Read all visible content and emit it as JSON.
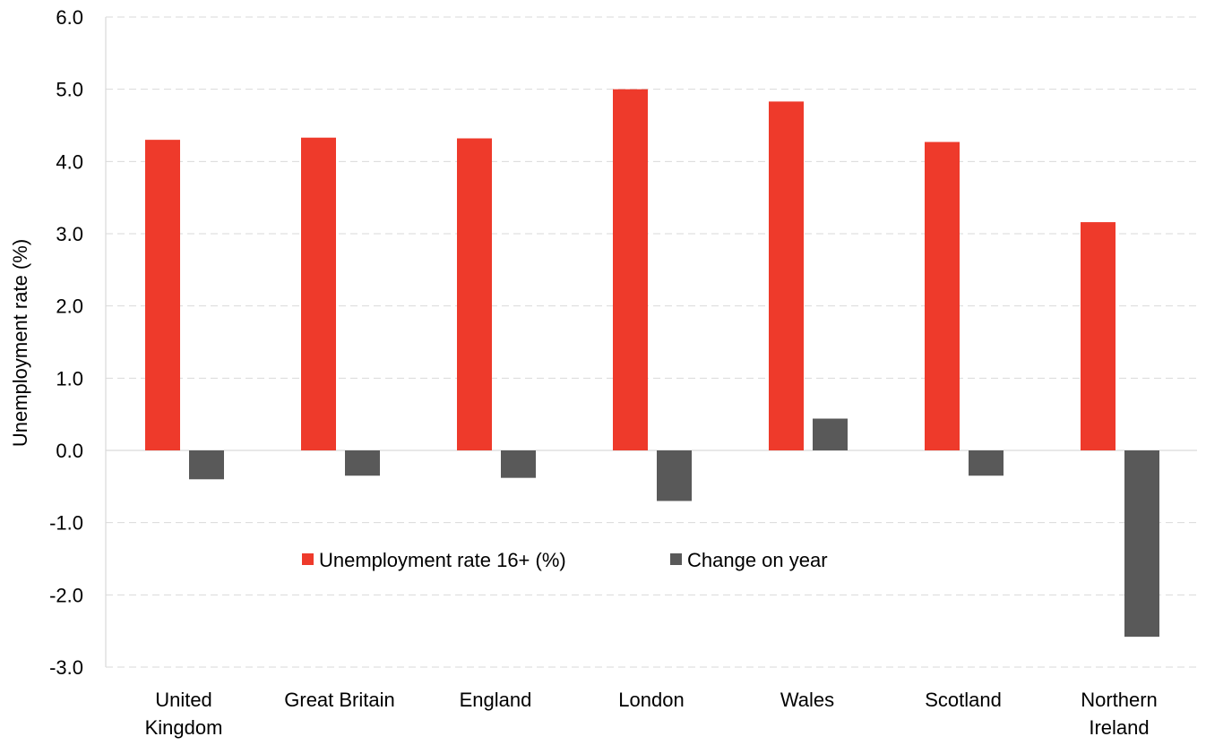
{
  "chart_data": {
    "type": "bar",
    "categories": [
      [
        "United",
        "Kingdom"
      ],
      [
        "Great Britain"
      ],
      [
        "England"
      ],
      [
        "London"
      ],
      [
        "Wales"
      ],
      [
        "Scotland"
      ],
      [
        "Northern",
        "Ireland"
      ]
    ],
    "series": [
      {
        "name": "Unemployment rate 16+ (%)",
        "color": "#ee3a2b",
        "values": [
          4.3,
          4.33,
          4.32,
          5.0,
          4.83,
          4.27,
          3.16
        ]
      },
      {
        "name": "Change on year",
        "color": "#595959",
        "values": [
          -0.4,
          -0.35,
          -0.38,
          -0.7,
          0.44,
          -0.35,
          -2.58
        ]
      }
    ],
    "ylabel": "Unemployment  rate (%)",
    "ylim": [
      -3.0,
      6.0
    ],
    "yticks": [
      "6.0",
      "5.0",
      "4.0",
      "3.0",
      "2.0",
      "1.0",
      "0.0",
      "-1.0",
      "-2.0",
      "-3.0"
    ],
    "grid": true,
    "legend_position": "center"
  }
}
